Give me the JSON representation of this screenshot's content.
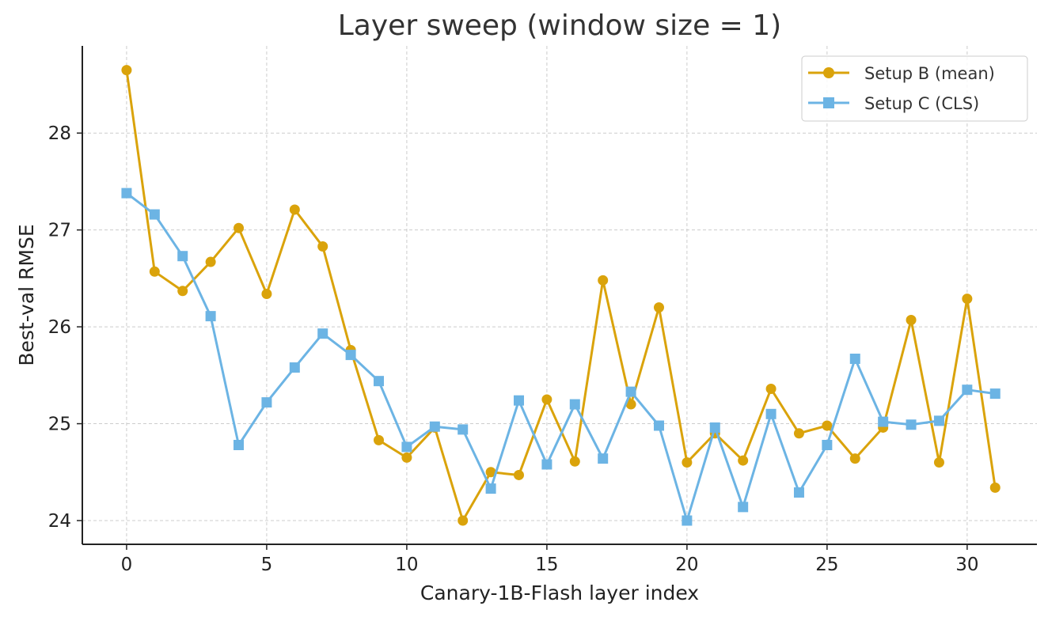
{
  "chart_data": {
    "type": "line",
    "title": "Layer sweep (window size = 1)",
    "xlabel": "Canary-1B-Flash layer index",
    "ylabel": "Best-val RMSE",
    "xlim": [
      -1.58,
      32.49
    ],
    "ylim": [
      23.755,
      28.9
    ],
    "xticks": [
      0,
      5,
      10,
      15,
      20,
      25,
      30
    ],
    "yticks": [
      24,
      25,
      26,
      27,
      28
    ],
    "grid": true,
    "legend_position": "top-right",
    "x": [
      0,
      1,
      2,
      3,
      4,
      5,
      6,
      7,
      8,
      9,
      10,
      11,
      12,
      13,
      14,
      15,
      16,
      17,
      18,
      19,
      20,
      21,
      22,
      23,
      24,
      25,
      26,
      27,
      28,
      29,
      30,
      31
    ],
    "series": [
      {
        "name": "Setup B (mean)",
        "color": "#DAA30B",
        "marker": "circle",
        "values": [
          28.65,
          26.57,
          26.37,
          26.67,
          27.02,
          26.34,
          27.21,
          26.83,
          25.76,
          24.83,
          24.65,
          24.96,
          24.0,
          24.5,
          24.47,
          25.25,
          24.61,
          26.48,
          25.2,
          26.2,
          24.6,
          24.9,
          24.62,
          25.36,
          24.9,
          24.98,
          24.64,
          24.96,
          26.07,
          24.6,
          26.29,
          24.34
        ]
      },
      {
        "name": "Setup C (CLS)",
        "color": "#6CB4E4",
        "marker": "square",
        "values": [
          27.38,
          27.16,
          26.73,
          26.11,
          24.78,
          25.22,
          25.58,
          25.93,
          25.71,
          25.44,
          24.76,
          24.97,
          24.94,
          24.33,
          25.24,
          24.58,
          25.2,
          24.64,
          25.33,
          24.98,
          24.0,
          24.96,
          24.14,
          25.1,
          24.29,
          24.78,
          25.67,
          25.02,
          24.99,
          25.03,
          25.35,
          25.31
        ]
      }
    ]
  }
}
